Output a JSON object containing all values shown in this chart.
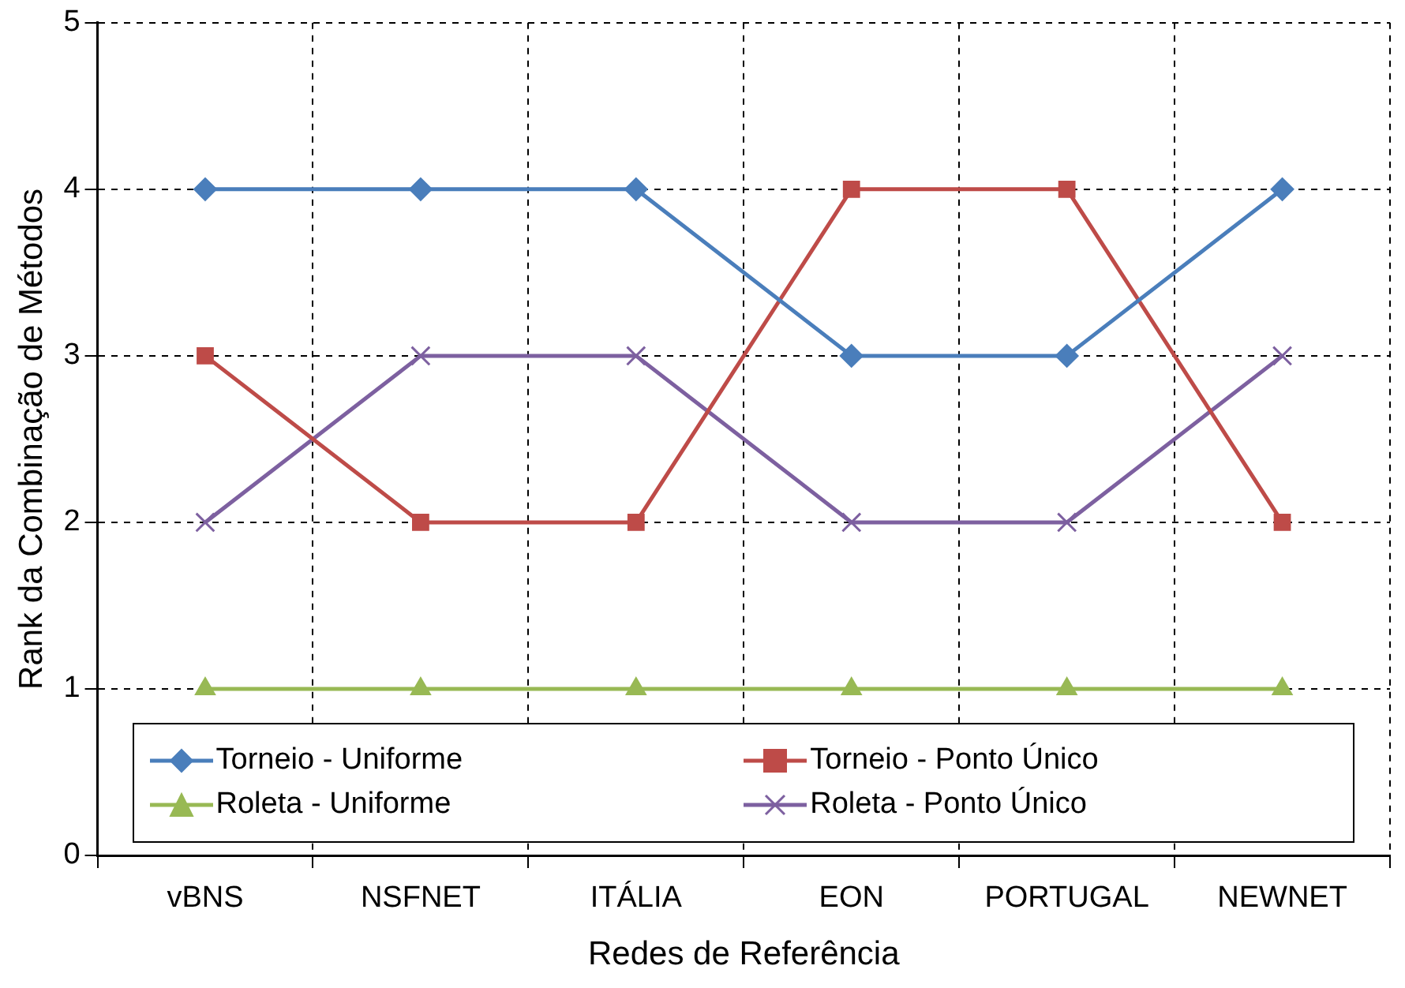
{
  "chart_data": {
    "type": "line",
    "xlabel": "Redes de Referência",
    "ylabel": "Rank da Combinação de Métodos",
    "categories": [
      "vBNS",
      "NSFNET",
      "ITÁLIA",
      "EON",
      "PORTUGAL",
      "NEWNET"
    ],
    "ylim": [
      0,
      5
    ],
    "yticks": [
      0,
      1,
      2,
      3,
      4,
      5
    ],
    "grid": true,
    "legend": "bottom",
    "line_style": "solid",
    "series": [
      {
        "name": "Torneio - Uniforme",
        "color": "#4a7ebb",
        "marker": "diamond",
        "values": [
          4,
          4,
          4,
          3,
          3,
          4
        ]
      },
      {
        "name": "Torneio - Ponto Único",
        "color": "#be4b48",
        "marker": "square",
        "values": [
          3,
          2,
          2,
          4,
          4,
          2
        ]
      },
      {
        "name": "Roleta - Uniforme",
        "color": "#98b954",
        "marker": "triangle",
        "values": [
          1,
          1,
          1,
          1,
          1,
          1
        ]
      },
      {
        "name": "Roleta - Ponto Único",
        "color": "#7d60a0",
        "marker": "cross",
        "values": [
          2,
          3,
          3,
          2,
          2,
          3
        ]
      }
    ]
  }
}
